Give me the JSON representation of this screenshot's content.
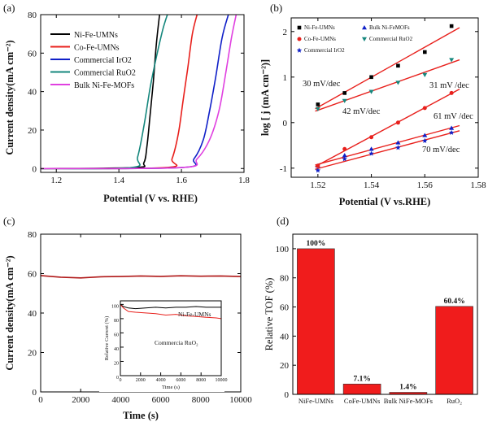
{
  "figure": {
    "panel_labels": [
      "(a)",
      "(b)",
      "(c)",
      "(d)"
    ]
  },
  "chart_data": [
    {
      "type": "line",
      "panel": "(a)",
      "xlabel": "Potential (V vs. RHE)",
      "ylabel": "Current density(mA cm⁻²)",
      "xlim": [
        1.15,
        1.8
      ],
      "ylim": [
        -2,
        80
      ],
      "xticks": [
        "1.2",
        "1.4",
        "1.6",
        "1.8"
      ],
      "yticks": [
        "0",
        "20",
        "40",
        "60",
        "80"
      ],
      "legend_position": "top-left",
      "colors": {
        "Ni-Fe-UMNs": "#000000",
        "Co-Fe-UMNs": "#e8201c",
        "Commercial IrO2": "#1020c8",
        "Commercial RuO2": "#15877d",
        "Bulk Ni-Fe-MOFs": "#e040e0"
      },
      "series": [
        {
          "name": "Ni-Fe-UMNs",
          "x": [
            1.15,
            1.45,
            1.48,
            1.49,
            1.5,
            1.51,
            1.52,
            1.53
          ],
          "y": [
            0,
            0.5,
            3,
            12,
            28,
            45,
            65,
            80
          ]
        },
        {
          "name": "Co-Fe-UMNs",
          "x": [
            1.15,
            1.55,
            1.57,
            1.59,
            1.605,
            1.62,
            1.635,
            1.65
          ],
          "y": [
            0,
            0.5,
            5,
            18,
            35,
            52,
            70,
            80
          ]
        },
        {
          "name": "Commercial IrO2",
          "x": [
            1.15,
            1.6,
            1.64,
            1.67,
            1.69,
            1.71,
            1.73,
            1.75
          ],
          "y": [
            0,
            0.5,
            5,
            15,
            30,
            48,
            68,
            80
          ]
        },
        {
          "name": "Commercial RuO2",
          "x": [
            1.15,
            1.44,
            1.46,
            1.48,
            1.5,
            1.52,
            1.54,
            1.555
          ],
          "y": [
            0,
            0.5,
            6,
            22,
            42,
            58,
            72,
            80
          ]
        },
        {
          "name": "Bulk Ni-Fe-MOFs",
          "x": [
            1.15,
            1.6,
            1.65,
            1.69,
            1.72,
            1.74,
            1.76,
            1.775
          ],
          "y": [
            0,
            0.5,
            5,
            15,
            30,
            48,
            68,
            80
          ]
        }
      ]
    },
    {
      "type": "scatter",
      "panel": "(b)",
      "xlabel": "Potential (V vs.RHE)",
      "ylabel": "log [ j (mA cm⁻²)]",
      "xlim": [
        1.51,
        1.58
      ],
      "ylim": [
        -1.2,
        2.3
      ],
      "xticks": [
        "1.52",
        "1.54",
        "1.56",
        "1.58"
      ],
      "yticks": [
        "-1",
        "0",
        "1",
        "2"
      ],
      "legend_position": "top",
      "fit_line_color": "#e8201c",
      "annotations": [
        "30 mV/dec",
        "31 mV /dec",
        "42 mV/dec",
        "61 mV /dec",
        "70 mV/dec"
      ],
      "series": [
        {
          "name": "Ni-Fe-UMNs",
          "marker": "square",
          "color": "#000000",
          "x": [
            1.52,
            1.53,
            1.54,
            1.55,
            1.56,
            1.57
          ],
          "y": [
            0.4,
            0.65,
            1.0,
            1.25,
            1.55,
            2.12
          ]
        },
        {
          "name": "Bulk Ni-FeMOFs",
          "marker": "triangle-up",
          "color": "#1020c8",
          "x": [
            1.52,
            1.53,
            1.54,
            1.55,
            1.56,
            1.57
          ],
          "y": [
            -0.95,
            -0.72,
            -0.58,
            -0.44,
            -0.28,
            -0.12
          ]
        },
        {
          "name": "Co-Fe-UMNs",
          "marker": "circle",
          "color": "#e8201c",
          "x": [
            1.52,
            1.53,
            1.54,
            1.55,
            1.56,
            1.57
          ],
          "y": [
            -0.95,
            -0.58,
            -0.32,
            0.0,
            0.32,
            0.65
          ]
        },
        {
          "name": "Commercial RuO2",
          "marker": "triangle-down",
          "color": "#15877d",
          "x": [
            1.52,
            1.53,
            1.54,
            1.55,
            1.56,
            1.57
          ],
          "y": [
            0.3,
            0.48,
            0.68,
            0.88,
            1.05,
            1.38
          ]
        },
        {
          "name": "Commercial IrO2",
          "marker": "star",
          "color": "#1020c8",
          "x": [
            1.52,
            1.53,
            1.54,
            1.55,
            1.56,
            1.57
          ],
          "y": [
            -1.05,
            -0.8,
            -0.68,
            -0.55,
            -0.4,
            -0.22
          ]
        }
      ]
    },
    {
      "type": "line",
      "panel": "(c)",
      "xlabel": "Time (s)",
      "ylabel": "Current density(mA cm⁻²)",
      "xlim": [
        0,
        10000
      ],
      "ylim": [
        0,
        80
      ],
      "xticks": [
        "0",
        "2000",
        "4000",
        "6000",
        "8000",
        "10000"
      ],
      "yticks": [
        "0",
        "20",
        "40",
        "60",
        "80"
      ],
      "series": [
        {
          "name": "",
          "color": "#b01818",
          "x": [
            0,
            500,
            1000,
            2000,
            3000,
            4000,
            5000,
            6000,
            7000,
            8000,
            9000,
            10000
          ],
          "y": [
            59,
            58.6,
            58.2,
            57.8,
            58.4,
            58.5,
            58.8,
            58.6,
            58.9,
            58.7,
            58.8,
            58.5
          ]
        }
      ],
      "inset": {
        "type": "line",
        "xlabel": "Time (s)",
        "ylabel": "Relative Current (%)",
        "xlim": [
          0,
          10000
        ],
        "ylim": [
          0,
          105
        ],
        "xticks": [
          "0",
          "2000",
          "4000",
          "6000",
          "8000",
          "10000"
        ],
        "yticks": [
          "0",
          "20",
          "40",
          "60",
          "80",
          "100"
        ],
        "series": [
          {
            "name": "Ni-Fe-UMNs",
            "color": "#000000",
            "label_text": "Ni-Fe-UMNs",
            "x": [
              0,
              300,
              800,
              1500,
              2500,
              3500,
              4500,
              5500,
              6500,
              7500,
              8500,
              9500,
              10000
            ],
            "y": [
              100,
              97,
              95,
              94,
              95,
              96,
              95,
              96,
              96,
              97,
              96,
              96,
              96
            ]
          },
          {
            "name": "Commercial RuO2",
            "color": "#e8201c",
            "label_text": "Commercia RuO₂",
            "x": [
              0,
              300,
              800,
              1500,
              2500,
              3500,
              4500,
              5500,
              6500,
              7500,
              8500,
              9500,
              10000
            ],
            "y": [
              100,
              95,
              90,
              89,
              88,
              87,
              85,
              86,
              84,
              83,
              82,
              81,
              80
            ]
          }
        ]
      }
    },
    {
      "type": "bar",
      "panel": "(d)",
      "xlabel": "",
      "ylabel": "Relative TOF (%)",
      "ylim": [
        0,
        110
      ],
      "yticks": [
        "0",
        "20",
        "40",
        "60",
        "80",
        "100"
      ],
      "bar_color": "#f01c1c",
      "categories": [
        "NiFe-UMNs",
        "CoFe-UMNs",
        "Bulk NiFe-MOFs",
        "RuO₂"
      ],
      "values": [
        100,
        7.1,
        1.4,
        60.4
      ],
      "data_labels": [
        "100%",
        "7.1%",
        "1.4%",
        "60.4%"
      ]
    }
  ]
}
